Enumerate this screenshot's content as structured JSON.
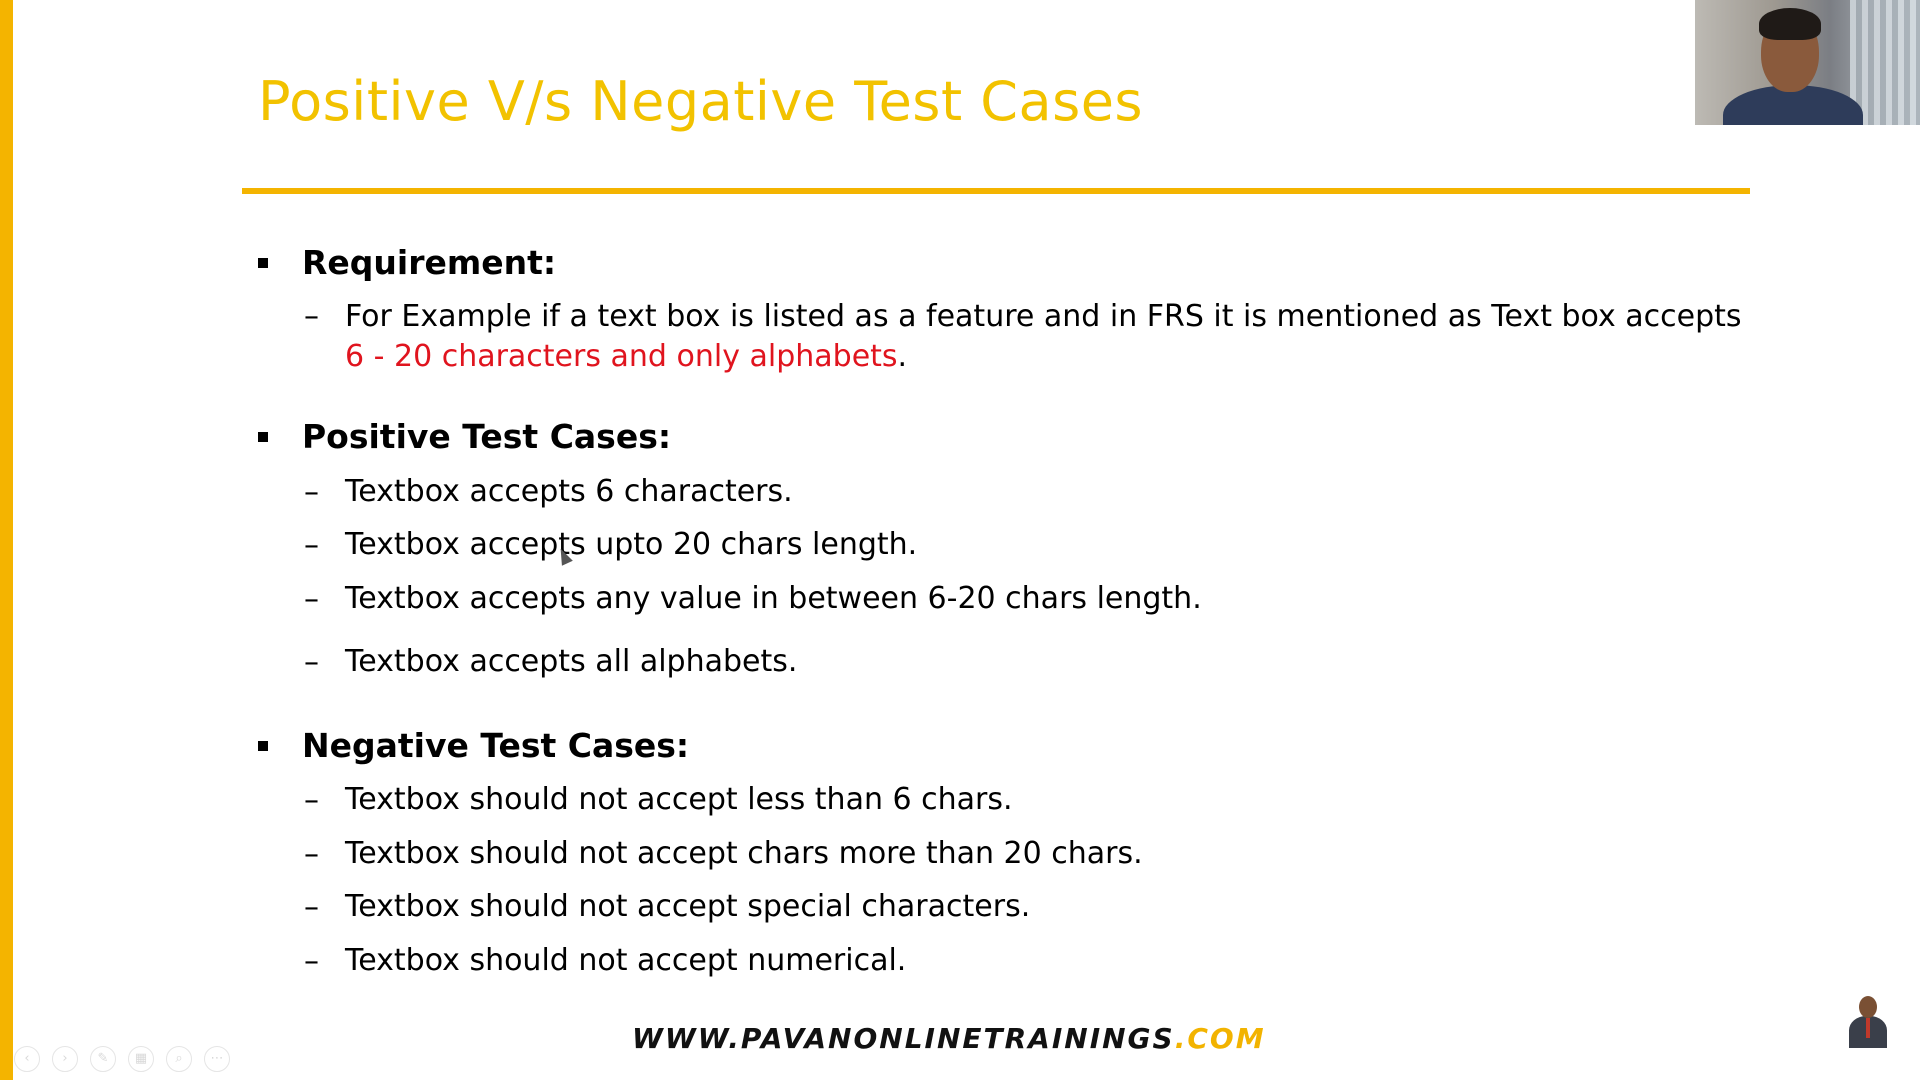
{
  "slide": {
    "title": "Positive V/s Negative Test Cases",
    "sections": [
      {
        "heading": "Requirement:",
        "items": [
          {
            "text": "For Example if a text box is listed as a feature and in FRS it is mentioned as Text box accepts",
            "text_line2_red": "6 - 20 characters and only alphabets",
            "text_line2_suffix": "."
          }
        ]
      },
      {
        "heading": "Positive Test Cases:",
        "items": [
          {
            "text": "Textbox accepts 6 characters."
          },
          {
            "text": "Textbox accepts upto 20 chars length."
          },
          {
            "text": "Textbox accepts any value in between 6-20 chars length."
          },
          {
            "text": "Textbox accepts all alphabets."
          }
        ]
      },
      {
        "heading": "Negative Test Cases:",
        "items": [
          {
            "text": "Textbox should not accept less than 6 chars."
          },
          {
            "text": "Textbox should not accept chars more than 20 chars."
          },
          {
            "text": "Textbox should not accept special characters."
          },
          {
            "text": "Textbox should not accept numerical."
          }
        ]
      }
    ],
    "footer": {
      "url_main": "WWW.PAVANONLINETRAININGS",
      "url_tld": ".COM"
    }
  },
  "dash_glyph": "–",
  "colors": {
    "accent": "#f4b400",
    "title": "#f2c200",
    "highlight_red": "#e0141e"
  },
  "controls": [
    {
      "icon": "previous-icon",
      "glyph": "‹"
    },
    {
      "icon": "next-icon",
      "glyph": "›"
    },
    {
      "icon": "pen-icon",
      "glyph": "✎"
    },
    {
      "icon": "slides-grid-icon",
      "glyph": "▦"
    },
    {
      "icon": "zoom-icon",
      "glyph": "⌕"
    },
    {
      "icon": "more-icon",
      "glyph": "⋯"
    }
  ]
}
